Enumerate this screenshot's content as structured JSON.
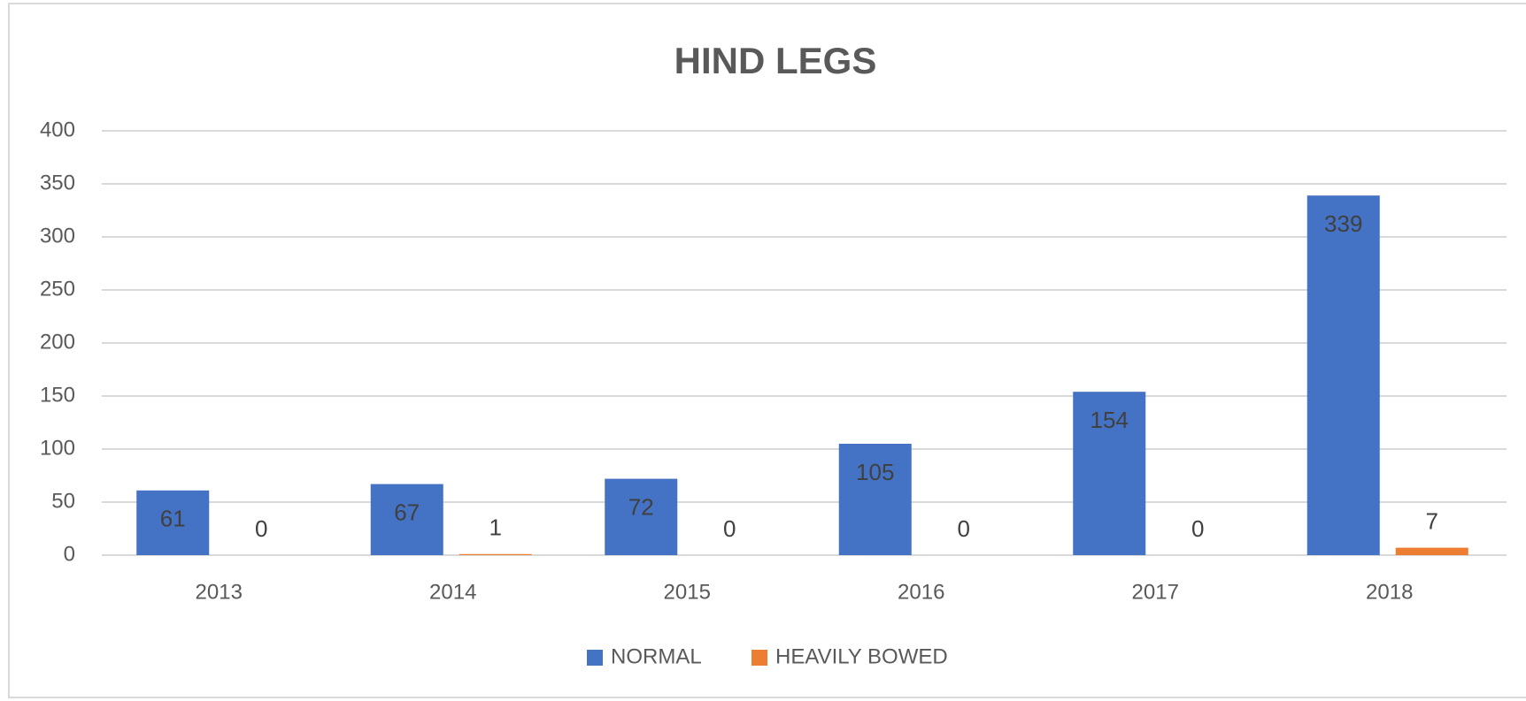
{
  "chart_data": {
    "type": "bar",
    "title": "HIND LEGS",
    "categories": [
      "2013",
      "2014",
      "2015",
      "2016",
      "2017",
      "2018"
    ],
    "series": [
      {
        "name": "NORMAL",
        "color": "#4472c4",
        "values": [
          61,
          67,
          72,
          105,
          154,
          339
        ]
      },
      {
        "name": "HEAVILY BOWED",
        "color": "#ed7d31",
        "values": [
          0,
          1,
          0,
          0,
          0,
          7
        ]
      }
    ],
    "ylim": [
      0,
      400
    ],
    "yticks": [
      0,
      50,
      100,
      150,
      200,
      250,
      300,
      350,
      400
    ],
    "grid": true,
    "legend": "bottom"
  }
}
